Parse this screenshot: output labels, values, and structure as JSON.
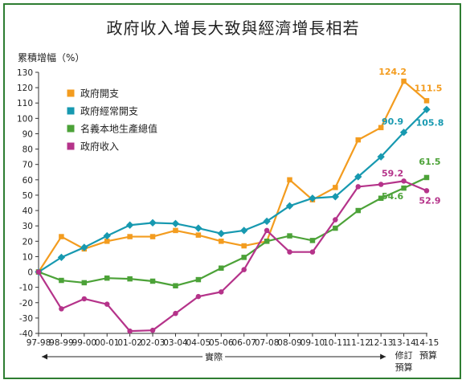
{
  "chart_data": {
    "type": "line",
    "title": "政府收入增長大致與經濟增長相若",
    "ylabel": "累積增幅（%）",
    "ylim": [
      -40,
      130
    ],
    "yticks": [
      -40,
      -30,
      -20,
      -10,
      0,
      10,
      20,
      30,
      40,
      50,
      60,
      70,
      80,
      90,
      100,
      110,
      120,
      130
    ],
    "grid": false,
    "legend_position": "top-left",
    "categories": [
      "97-98",
      "98-99",
      "99-00",
      "00-01",
      "01-02",
      "02-03",
      "03-04",
      "04-05",
      "05-06",
      "06-07",
      "07-08",
      "08-09",
      "09-10",
      "10-11",
      "11-12",
      "12-13",
      "13-14",
      "14-15"
    ],
    "category_notes": [
      {
        "index": 16,
        "text_lines": [
          "修訂",
          "預算"
        ]
      },
      {
        "index": 17,
        "text_lines": [
          "預算"
        ]
      }
    ],
    "actual_label": "實際",
    "series": [
      {
        "name": "政府開支",
        "color": "#f39c1f",
        "marker": "square",
        "values": [
          0,
          23,
          15,
          20,
          23,
          23,
          27,
          24,
          20,
          17,
          20,
          60,
          47,
          55,
          86,
          94,
          124.2,
          111.5
        ]
      },
      {
        "name": "政府經常開支",
        "color": "#1799b0",
        "marker": "diamond",
        "values": [
          0,
          9.5,
          16,
          23.5,
          30.5,
          32,
          31.5,
          28.5,
          25,
          27,
          33,
          43,
          48,
          49,
          62,
          75,
          90.9,
          105.8
        ]
      },
      {
        "name": "名義本地生產總值",
        "color": "#4ca238",
        "marker": "square",
        "values": [
          0,
          -5.5,
          -7,
          -4,
          -4.5,
          -6,
          -9,
          -5,
          2.5,
          9.5,
          20,
          23.5,
          20.5,
          28.5,
          40,
          48,
          54.6,
          61.5
        ]
      },
      {
        "name": "政府收入",
        "color": "#b5338a",
        "marker": "circle",
        "values": [
          0,
          -24,
          -17.5,
          -21,
          -38.5,
          -38,
          -27,
          -16,
          -13,
          1.5,
          27,
          13,
          13,
          34,
          55.5,
          57,
          59.2,
          52.9
        ]
      }
    ],
    "data_labels": [
      {
        "series": 0,
        "index": 16,
        "text": "124.2"
      },
      {
        "series": 0,
        "index": 17,
        "text": "111.5"
      },
      {
        "series": 1,
        "index": 16,
        "text": "90.9"
      },
      {
        "series": 1,
        "index": 17,
        "text": "105.8"
      },
      {
        "series": 2,
        "index": 16,
        "text": "54.6"
      },
      {
        "series": 2,
        "index": 17,
        "text": "61.5"
      },
      {
        "series": 3,
        "index": 16,
        "text": "59.2"
      },
      {
        "series": 3,
        "index": 17,
        "text": "52.9"
      }
    ]
  }
}
